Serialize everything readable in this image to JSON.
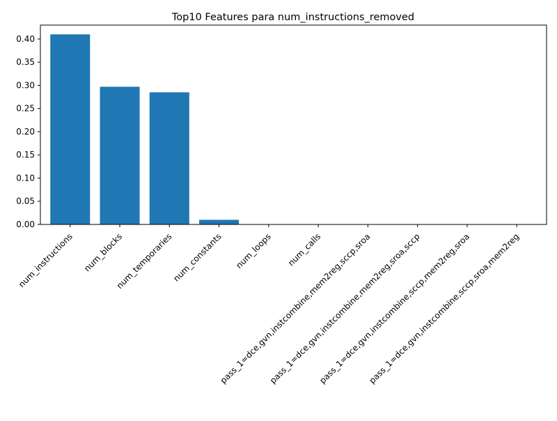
{
  "chart_data": {
    "type": "bar",
    "title": "Top10 Features para num_instructions_removed",
    "xlabel": "",
    "ylabel": "",
    "categories": [
      "num_instructions",
      "num_blocks",
      "num_temporaries",
      "num_constants",
      "num_loops",
      "num_calls",
      "pass_1=dce,gvn,instcombine,mem2reg,sccp,sroa",
      "pass_1=dce,gvn,instcombine,mem2reg,sroa,sccp",
      "pass_1=dce,gvn,instcombine,sccp,mem2reg,sroa",
      "pass_1=dce,gvn,instcombine,sccp,sroa,mem2reg"
    ],
    "values": [
      0.41,
      0.297,
      0.285,
      0.01,
      0.0,
      0.0,
      0.0,
      0.0,
      0.0,
      0.0
    ],
    "ylim": [
      0,
      0.43
    ],
    "yticks": [
      0.0,
      0.05,
      0.1,
      0.15,
      0.2,
      0.25,
      0.3,
      0.35,
      0.4
    ],
    "ytick_labels": [
      "0.00",
      "0.05",
      "0.10",
      "0.15",
      "0.20",
      "0.25",
      "0.30",
      "0.35",
      "0.40"
    ],
    "bar_color": "#1f77b4",
    "grid": false,
    "legend": "none"
  }
}
